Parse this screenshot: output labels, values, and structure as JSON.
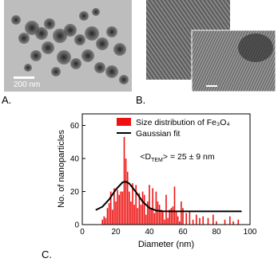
{
  "panels": {
    "a": {
      "label": "A.",
      "scale_bar": "200 nm"
    },
    "b": {
      "label": "B."
    },
    "c": {
      "label": "C."
    }
  },
  "chart_data": {
    "type": "bar",
    "x_label": "Diameter (nm)",
    "y_label": "No. of nanoparticles",
    "annotation": [
      "<D",
      "TEM",
      "> = 25 ± 9 nm"
    ],
    "x": [
      12,
      13,
      14,
      15,
      16,
      17,
      18,
      19,
      20,
      21,
      22,
      23,
      24,
      25,
      26,
      27,
      28,
      29,
      30,
      31,
      32,
      33,
      34,
      35,
      36,
      37,
      38,
      39,
      40,
      41,
      42,
      43,
      44,
      45,
      46,
      47,
      48,
      49,
      50,
      51,
      52,
      53,
      54,
      55,
      56,
      57,
      58,
      59,
      60,
      62,
      64,
      66,
      68,
      70,
      72,
      75,
      78,
      80,
      85,
      88,
      90,
      93
    ],
    "series": [
      {
        "name": "Size distribution of Fe₃O₄",
        "color": "#ee1111",
        "values": [
          3,
          5,
          4,
          10,
          13,
          20,
          9,
          22,
          14,
          21,
          18,
          20,
          20,
          53,
          40,
          32,
          20,
          14,
          25,
          12,
          24,
          10,
          19,
          12,
          20,
          18,
          6,
          14,
          24,
          10,
          22,
          7,
          20,
          14,
          12,
          9,
          8,
          3,
          18,
          4,
          9,
          10,
          11,
          23,
          8,
          5,
          2,
          14,
          10,
          7,
          8,
          3,
          6,
          4,
          5,
          4,
          6,
          2,
          3,
          5,
          2,
          3
        ]
      },
      {
        "name": "Gaussian fit",
        "color": "#000000",
        "type": "line",
        "x": [
          8,
          12,
          16,
          20,
          24,
          26,
          28,
          32,
          36,
          40,
          44,
          48,
          52,
          60,
          80,
          95
        ],
        "values": [
          8.8,
          10.8,
          15.2,
          21.2,
          25.6,
          26,
          24.9,
          19.7,
          13.9,
          10.1,
          8.5,
          8.1,
          8,
          8,
          8,
          8
        ]
      }
    ],
    "xlim": [
      0,
      100
    ],
    "xticks": [
      0,
      20,
      40,
      60,
      80,
      100
    ],
    "ylim": [
      0,
      67
    ],
    "yticks": [
      0,
      20,
      40,
      60
    ]
  }
}
